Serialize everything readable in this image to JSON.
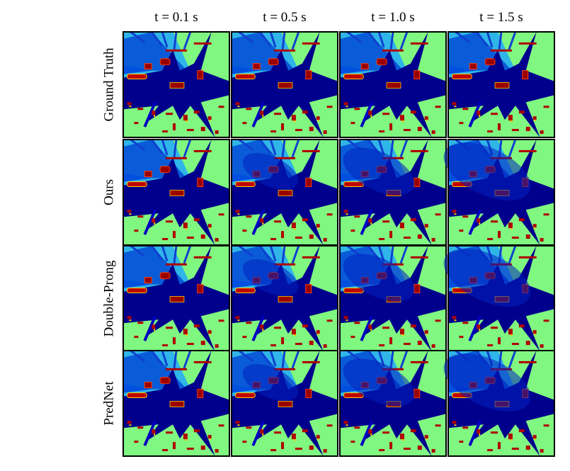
{
  "columns": [
    "t = 0.1 s",
    "t = 0.5 s",
    "t = 1.0 s",
    "t = 1.5 s"
  ],
  "rows": [
    "Ground Truth",
    "Ours",
    "Double-Prong",
    "PredNet"
  ]
}
